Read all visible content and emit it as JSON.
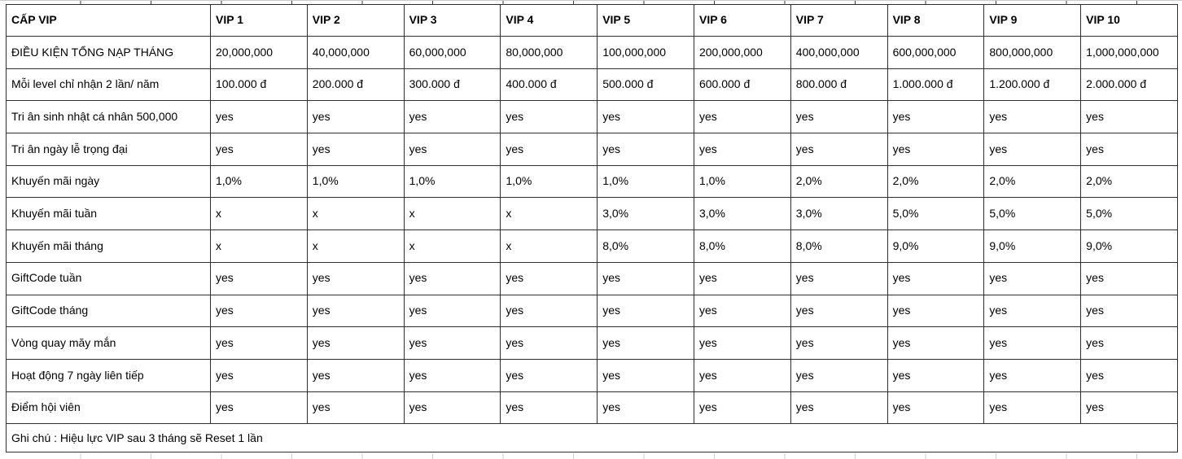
{
  "table": {
    "header": [
      "CẤP VIP",
      "VIP 1",
      "VIP 2",
      "VIP 3",
      "VIP 4",
      "VIP 5",
      "VIP 6",
      "VIP 7",
      "VIP 8",
      "VIP 9",
      "VIP 10"
    ],
    "rows": [
      {
        "label": "ĐIỀU KIỆN TỔNG NẠP THÁNG",
        "values": [
          "20,000,000",
          "40,000,000",
          "60,000,000",
          "80,000,000",
          "100,000,000",
          "200,000,000",
          "400,000,000",
          "600,000,000",
          "800,000,000",
          "1,000,000,000"
        ]
      },
      {
        "label": "Mỗi level chỉ nhận 2 lần/ năm",
        "values": [
          "100.000 đ",
          "200.000 đ",
          "300.000 đ",
          "400.000 đ",
          "500.000 đ",
          "600.000 đ",
          "800.000 đ",
          "1.000.000 đ",
          "1.200.000 đ",
          "2.000.000 đ"
        ]
      },
      {
        "label": "Tri ân sinh nhật cá nhân 500,000",
        "values": [
          "yes",
          "yes",
          "yes",
          "yes",
          "yes",
          "yes",
          "yes",
          "yes",
          "yes",
          "yes"
        ]
      },
      {
        "label": "Tri ân ngày lễ trọng đại",
        "values": [
          "yes",
          "yes",
          "yes",
          "yes",
          "yes",
          "yes",
          "yes",
          "yes",
          "yes",
          "yes"
        ]
      },
      {
        "label": "Khuyến mãi ngày",
        "values": [
          "1,0%",
          "1,0%",
          "1,0%",
          "1,0%",
          "1,0%",
          "1,0%",
          "2,0%",
          "2,0%",
          "2,0%",
          "2,0%"
        ]
      },
      {
        "label": "Khuyến mãi tuần",
        "values": [
          "x",
          "x",
          "x",
          "x",
          "3,0%",
          "3,0%",
          "3,0%",
          "5,0%",
          "5,0%",
          "5,0%"
        ]
      },
      {
        "label": "Khuyến mãi tháng",
        "values": [
          "x",
          "x",
          "x",
          "x",
          "8,0%",
          "8,0%",
          "8,0%",
          "9,0%",
          "9,0%",
          "9,0%"
        ]
      },
      {
        "label": "GiftCode tuần",
        "values": [
          "yes",
          "yes",
          "yes",
          "yes",
          "yes",
          "yes",
          "yes",
          "yes",
          "yes",
          "yes"
        ]
      },
      {
        "label": "GiftCode tháng",
        "values": [
          "yes",
          "yes",
          "yes",
          "yes",
          "yes",
          "yes",
          "yes",
          "yes",
          "yes",
          "yes"
        ]
      },
      {
        "label": "Vòng quay măy mắn",
        "values": [
          "yes",
          "yes",
          "yes",
          "yes",
          "yes",
          "yes",
          "yes",
          "yes",
          "yes",
          "yes"
        ]
      },
      {
        "label": "Hoạt động 7 ngày liên tiếp",
        "values": [
          "yes",
          "yes",
          "yes",
          "yes",
          "yes",
          "yes",
          "yes",
          "yes",
          "yes",
          "yes"
        ]
      },
      {
        "label": "Điểm hội viên",
        "values": [
          "yes",
          "yes",
          "yes",
          "yes",
          "yes",
          "yes",
          "yes",
          "yes",
          "yes",
          "yes"
        ]
      }
    ],
    "note": "Ghi chú : Hiệu lực VIP sau 3 tháng sẽ Reset 1 lần"
  },
  "colors": {
    "table_border": "#2f2f2f",
    "grid_light": "#cfcfcf",
    "text": "#000000",
    "background": "#ffffff"
  }
}
